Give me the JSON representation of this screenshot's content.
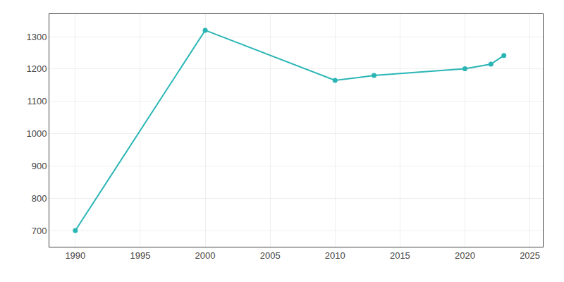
{
  "chart_data": {
    "type": "line",
    "x": [
      1990,
      2000,
      2010,
      2013,
      2020,
      2022,
      2023
    ],
    "values": [
      700,
      1320,
      1165,
      1180,
      1201,
      1215,
      1242
    ],
    "color": "#2ab5b5",
    "marker": "circle",
    "xlim": [
      1988,
      2026
    ],
    "ylim": [
      650,
      1370
    ],
    "xticks": [
      1990,
      1995,
      2000,
      2005,
      2010,
      2015,
      2020,
      2025
    ],
    "yticks": [
      700,
      800,
      900,
      1000,
      1100,
      1200,
      1300
    ],
    "grid": true
  }
}
